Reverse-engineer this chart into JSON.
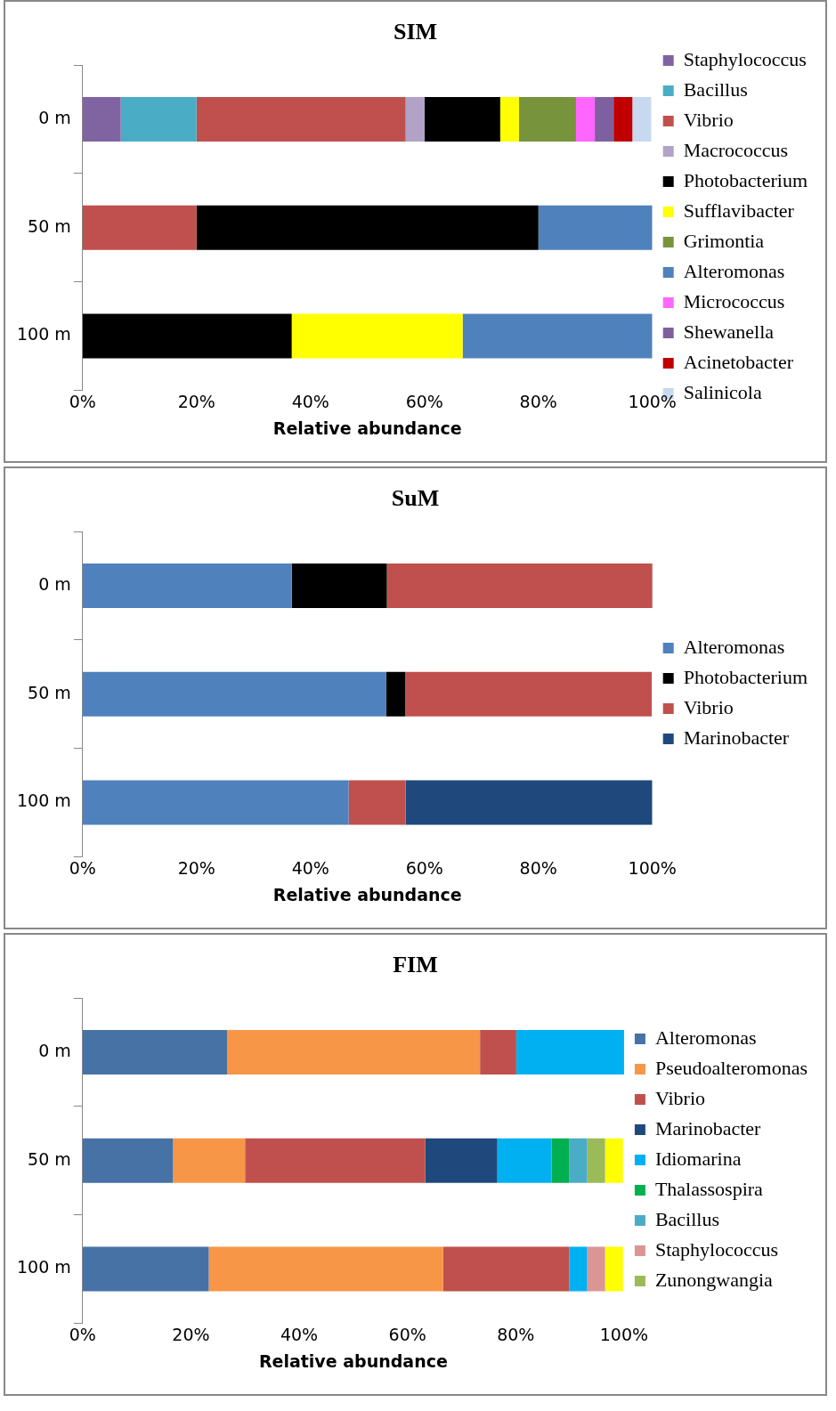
{
  "chart_data": [
    {
      "type": "bar",
      "orientation": "horizontal",
      "stacked": true,
      "title": "SIM",
      "xlabel": "Relative abundance",
      "categories": [
        "0 m",
        "50 m",
        "100 m"
      ],
      "xlim": [
        0,
        100
      ],
      "xticks": [
        {
          "value": 0,
          "label": "0%"
        },
        {
          "value": 20,
          "label": "20%"
        },
        {
          "value": 40,
          "label": "40%"
        },
        {
          "value": 60,
          "label": "60%"
        },
        {
          "value": 80,
          "label": "80%"
        },
        {
          "value": 100,
          "label": "100%"
        }
      ],
      "grid": false,
      "legend": "right",
      "series": [
        {
          "name": "Staphylococcus",
          "color": "#8064a2",
          "values": [
            6.7,
            null,
            null
          ]
        },
        {
          "name": "Bacillus",
          "color": "#4bacc6",
          "values": [
            13.3,
            null,
            null
          ]
        },
        {
          "name": "Vibrio",
          "color": "#c0504d",
          "values": [
            36.7,
            20,
            null
          ]
        },
        {
          "name": "Macrococcus",
          "color": "#b2a2c7",
          "values": [
            3.3,
            null,
            null
          ]
        },
        {
          "name": "Photobacterium",
          "color": "#000000",
          "values": [
            13.3,
            60,
            36.7
          ]
        },
        {
          "name": "Sufflavibacter",
          "color": "#ffff00",
          "values": [
            3.3,
            null,
            30
          ]
        },
        {
          "name": "Grimontia",
          "color": "#77933c",
          "values": [
            10,
            null,
            null
          ]
        },
        {
          "name": "Alteromonas",
          "color": "#4f81bd",
          "values": [
            null,
            20,
            33.3
          ]
        },
        {
          "name": "Micrococcus",
          "color": "#ff66ff",
          "values": [
            3.3,
            null,
            null
          ]
        },
        {
          "name": "Shewanella",
          "color": "#7f609e",
          "values": [
            3.3,
            null,
            null
          ]
        },
        {
          "name": "Acinetobacter",
          "color": "#c00000",
          "values": [
            3.3,
            null,
            null
          ]
        },
        {
          "name": "Salinicola",
          "color": "#c6d9f1",
          "values": [
            3.3,
            null,
            null
          ]
        }
      ]
    },
    {
      "type": "bar",
      "orientation": "horizontal",
      "stacked": true,
      "title": "SuM",
      "xlabel": "Relative abundance",
      "categories": [
        "0 m",
        "50 m",
        "100 m"
      ],
      "xlim": [
        0,
        100
      ],
      "xticks": [
        {
          "value": 0,
          "label": "0%"
        },
        {
          "value": 20,
          "label": "20%"
        },
        {
          "value": 40,
          "label": "40%"
        },
        {
          "value": 60,
          "label": "60%"
        },
        {
          "value": 80,
          "label": "80%"
        },
        {
          "value": 100,
          "label": "100%"
        }
      ],
      "grid": false,
      "legend": "right",
      "series": [
        {
          "name": "Alteromonas",
          "color": "#4f81bd",
          "values": [
            36.7,
            53.3,
            46.7
          ]
        },
        {
          "name": "Photobacterium",
          "color": "#000000",
          "values": [
            16.7,
            3.3,
            null
          ]
        },
        {
          "name": "Vibrio",
          "color": "#c0504d",
          "values": [
            46.7,
            43.3,
            10
          ]
        },
        {
          "name": "Marinobacter",
          "color": "#1f497d",
          "values": [
            null,
            null,
            43.3
          ]
        }
      ]
    },
    {
      "type": "bar",
      "orientation": "horizontal",
      "stacked": true,
      "title": "FIM",
      "xlabel": "Relative abundance",
      "categories": [
        "0 m",
        "50 m",
        "100 m"
      ],
      "xlim": [
        0,
        100
      ],
      "xticks": [
        {
          "value": 0,
          "label": "0%"
        },
        {
          "value": 20,
          "label": "20%"
        },
        {
          "value": 40,
          "label": "40%"
        },
        {
          "value": 60,
          "label": "60%"
        },
        {
          "value": 80,
          "label": "80%"
        },
        {
          "value": 100,
          "label": "100%"
        }
      ],
      "grid": false,
      "legend": "right",
      "series": [
        {
          "name": "Alteromonas",
          "color": "#4672a6",
          "values": [
            26.7,
            16.7,
            23.3
          ]
        },
        {
          "name": "Pseudoalteromonas",
          "color": "#f79646",
          "values": [
            46.7,
            13.3,
            43.3
          ]
        },
        {
          "name": "Vibrio",
          "color": "#c0504d",
          "values": [
            6.7,
            33.3,
            23.3
          ]
        },
        {
          "name": "Marinobacter",
          "color": "#1f497d",
          "values": [
            null,
            13.3,
            null
          ]
        },
        {
          "name": "Idiomarina",
          "color": "#00b0f0",
          "values": [
            20,
            10,
            3.3
          ]
        },
        {
          "name": "Thalassospira",
          "color": "#00b050",
          "values": [
            null,
            3.3,
            null
          ]
        },
        {
          "name": "Bacillus",
          "color": "#4bacc6",
          "values": [
            null,
            3.3,
            null
          ]
        },
        {
          "name": "Staphylococcus",
          "color": "#d99694",
          "values": [
            null,
            null,
            3.3
          ]
        },
        {
          "name": "Zunongwangia",
          "color": "#9bbb59",
          "values": [
            null,
            3.3,
            null
          ]
        },
        {
          "color": "#ffff00",
          "values": [
            null,
            3.3,
            3.3
          ]
        }
      ]
    }
  ]
}
